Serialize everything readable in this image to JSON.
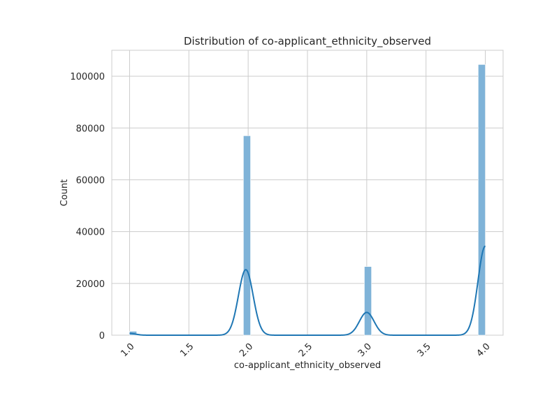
{
  "chart_data": {
    "type": "bar",
    "title": "Distribution of co-applicant_ethnicity_observed",
    "xlabel": "co-applicant_ethnicity_observed",
    "ylabel": "Count",
    "xlim": [
      0.85,
      4.15
    ],
    "ylim": [
      0,
      110000
    ],
    "grid": true,
    "bar_color": "#7fb3d8",
    "kde_color": "#1f77b4",
    "xticks": [
      1.0,
      1.5,
      2.0,
      2.5,
      3.0,
      3.5,
      4.0
    ],
    "xtick_labels": [
      "1.0",
      "1.5",
      "2.0",
      "2.5",
      "3.0",
      "3.5",
      "4.0"
    ],
    "yticks": [
      0,
      20000,
      40000,
      60000,
      80000,
      100000
    ],
    "ytick_labels": [
      "0",
      "20000",
      "40000",
      "60000",
      "80000",
      "100000"
    ],
    "bins": [
      {
        "x0": 1.0,
        "x1": 1.06,
        "count": 1500
      },
      {
        "x0": 1.06,
        "x1": 1.12,
        "count": 200
      },
      {
        "x0": 1.96,
        "x1": 2.02,
        "count": 77000
      },
      {
        "x0": 2.98,
        "x1": 3.04,
        "count": 26500
      },
      {
        "x0": 3.94,
        "x1": 4.0,
        "count": 104500
      }
    ],
    "kde": {
      "peaks": [
        {
          "center": 1.0,
          "height": 700,
          "sigma": 0.05
        },
        {
          "center": 1.98,
          "height": 25300,
          "sigma": 0.062
        },
        {
          "center": 3.0,
          "height": 8800,
          "sigma": 0.062
        },
        {
          "center": 4.0,
          "height": 34400,
          "sigma": 0.062
        }
      ],
      "x_range": [
        1.0,
        4.0
      ]
    }
  }
}
